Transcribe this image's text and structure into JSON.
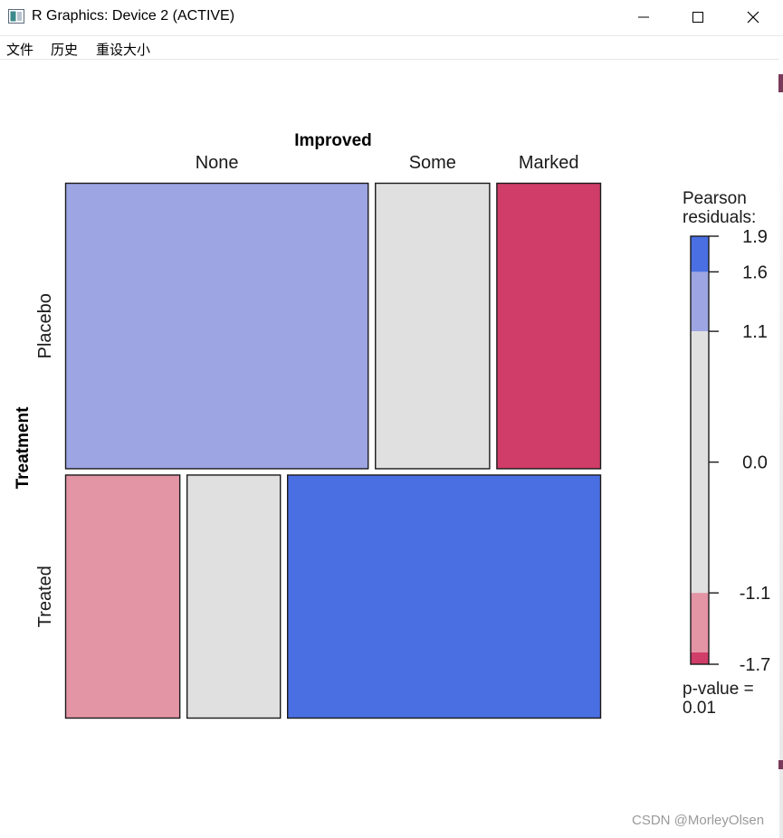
{
  "window": {
    "title": "R Graphics: Device 2 (ACTIVE)",
    "icons": [
      "app-icon",
      "minimize-icon",
      "maximize-icon",
      "close-icon"
    ]
  },
  "menu": {
    "items": [
      "文件",
      "历史",
      "重设大小"
    ]
  },
  "chart_data": {
    "type": "mosaic",
    "title": "Improved",
    "xlabel": "Improved",
    "ylabel": "Treatment",
    "column_labels": [
      "None",
      "Some",
      "Marked"
    ],
    "row_labels": [
      "Placebo",
      "Treated"
    ],
    "row_proportions": [
      0.54,
      0.46
    ],
    "cells": [
      [
        {
          "col": "None",
          "proportion": 0.58,
          "color": "#9DA5E3"
        },
        {
          "col": "Some",
          "proportion": 0.22,
          "color": "#E0E0E0"
        },
        {
          "col": "Marked",
          "proportion": 0.2,
          "color": "#D03D68"
        }
      ],
      [
        {
          "col": "None",
          "proportion": 0.22,
          "color": "#E394A5"
        },
        {
          "col": "Some",
          "proportion": 0.18,
          "color": "#E0E0E0"
        },
        {
          "col": "Marked",
          "proportion": 0.6,
          "color": "#4A6FE3"
        }
      ]
    ],
    "legend": {
      "title_lines": [
        "Pearson",
        "residuals:"
      ],
      "range": [
        -1.7,
        1.9
      ],
      "ticks": [
        1.9,
        1.6,
        1.1,
        0.0,
        -1.1,
        -1.7
      ],
      "tick_labels": [
        "1.9",
        "1.6",
        "1.1",
        "0.0",
        "-1.1",
        "-1.7"
      ],
      "bands": [
        {
          "from": 1.6,
          "to": 1.9,
          "color": "#4A6FE3"
        },
        {
          "from": 1.1,
          "to": 1.6,
          "color": "#9DA5E3"
        },
        {
          "from": -1.1,
          "to": 1.1,
          "color": "#E0E0E0"
        },
        {
          "from": -1.6,
          "to": -1.1,
          "color": "#E394A5"
        },
        {
          "from": -1.7,
          "to": -1.6,
          "color": "#D03D68"
        }
      ],
      "pvalue_lines": [
        "p-value =",
        "0.01"
      ]
    }
  },
  "watermark": "CSDN @MorleyOlsen"
}
